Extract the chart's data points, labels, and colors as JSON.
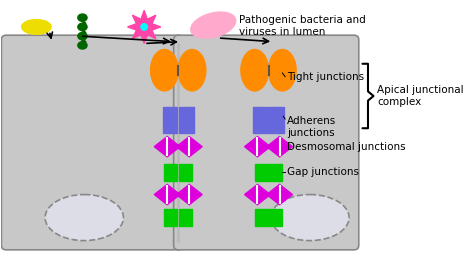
{
  "cell_color": "#c8c8c8",
  "cell_edge": "#888888",
  "tight_color": "#FF8C00",
  "adherens_color": "#6666DD",
  "desmosomal_color": "#DD00DD",
  "gap_color": "#00CC00",
  "nucleus_face": "#dddde8",
  "nucleus_edge": "#888888",
  "junction_line": "#bbbbbb",
  "labels": {
    "bacteria": "Pathogenic bacteria and\nviruses in lumen",
    "tight": "Tight junctions",
    "adherens": "Adherens\njunctions",
    "desmosomal": "Desmosomal junctions",
    "gap": "Gap junctions",
    "apical": "Apical junctional\ncomplex"
  },
  "figsize": [
    4.74,
    2.62
  ],
  "dpi": 100
}
